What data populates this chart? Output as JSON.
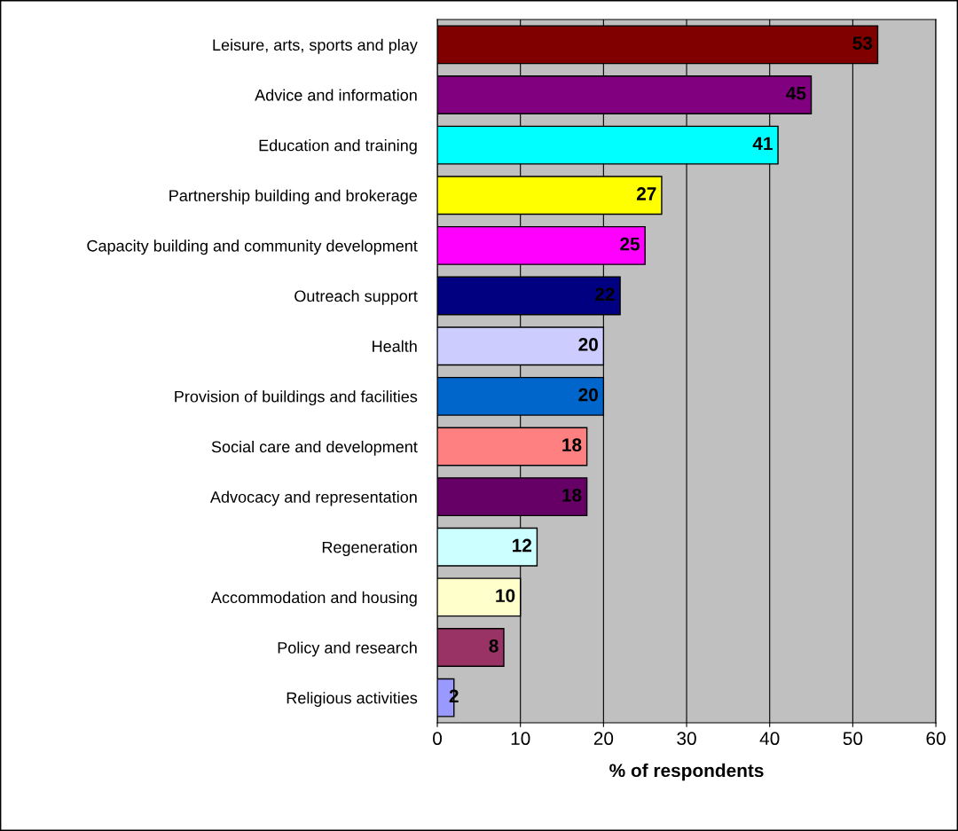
{
  "chart_data": {
    "type": "bar",
    "orientation": "horizontal",
    "xlabel": "% of respondents",
    "categories": [
      "Leisure, arts, sports and play",
      "Advice and information",
      "Education and training",
      "Partnership building and brokerage",
      "Capacity building and community development",
      "Outreach support",
      "Health",
      "Provision of buildings and facilities",
      "Social care and development",
      "Advocacy and representation",
      "Regeneration",
      "Accommodation and housing",
      "Policy and research",
      "Religious activities"
    ],
    "values": [
      53,
      45,
      41,
      27,
      25,
      22,
      20,
      20,
      18,
      18,
      12,
      10,
      8,
      2
    ],
    "colors": [
      "#800000",
      "#800080",
      "#00ffff",
      "#ffff00",
      "#ff00ff",
      "#000080",
      "#ccccff",
      "#0066cc",
      "#ff8080",
      "#660066",
      "#ccffff",
      "#ffffcc",
      "#993366",
      "#9999ff"
    ],
    "xlim": [
      0,
      60
    ],
    "xticks": [
      0,
      10,
      20,
      30,
      40,
      50,
      60
    ],
    "grid": "x",
    "data_labels": true,
    "legend": false
  }
}
